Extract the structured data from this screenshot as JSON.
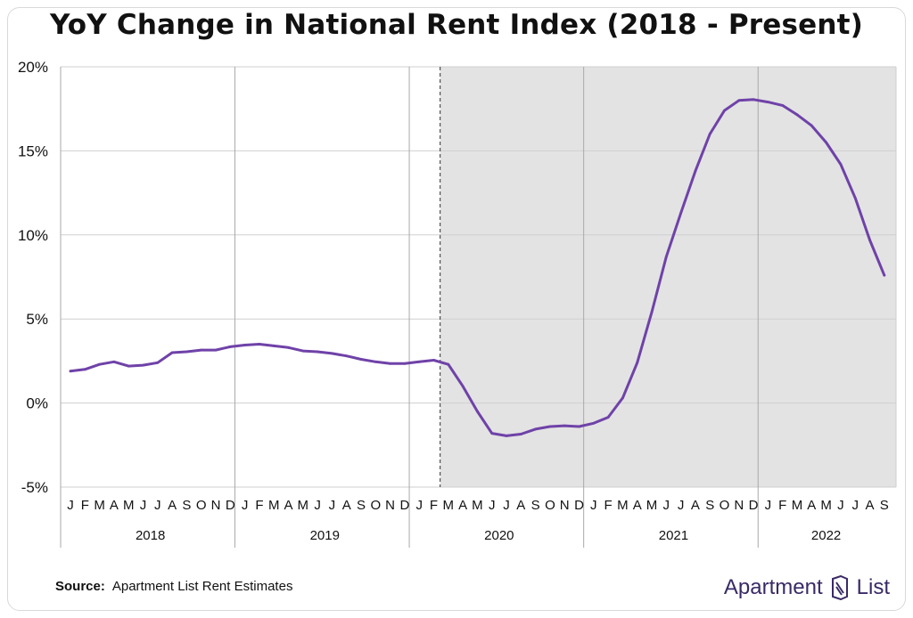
{
  "title": "YoY Change in National Rent Index (2018 - Present)",
  "source_label": "Source:",
  "source_text": "Apartment List Rent Estimates",
  "brand": {
    "word1": "Apartment",
    "word2": "List",
    "icon": "apartment-list-logo-icon",
    "color": "#3a2a66"
  },
  "colors": {
    "line": "#6f42a8",
    "shade": "#e3e3e3",
    "grid": "#cfcfcf",
    "year_divider": "#a9a9a9"
  },
  "chart_data": {
    "type": "line",
    "title": "YoY Change in National Rent Index (2018 - Present)",
    "xlabel": "",
    "ylabel": "",
    "ylim": [
      -5,
      20
    ],
    "yticks": [
      -5,
      0,
      5,
      10,
      15,
      20
    ],
    "ytick_labels": [
      "-5%",
      "0%",
      "5%",
      "10%",
      "15%",
      "20%"
    ],
    "grid": true,
    "shaded_region": {
      "from": "2020-03",
      "to": "2022-09"
    },
    "month_labels": [
      "J",
      "F",
      "M",
      "A",
      "M",
      "J",
      "J",
      "A",
      "S",
      "O",
      "N",
      "D",
      "J",
      "F",
      "M",
      "A",
      "M",
      "J",
      "J",
      "A",
      "S",
      "O",
      "N",
      "D",
      "J",
      "F",
      "M",
      "A",
      "M",
      "J",
      "J",
      "A",
      "S",
      "O",
      "N",
      "D",
      "J",
      "F",
      "M",
      "A",
      "M",
      "J",
      "J",
      "A",
      "S",
      "O",
      "N",
      "D",
      "J",
      "F",
      "M",
      "A",
      "M",
      "J",
      "J",
      "A",
      "S"
    ],
    "years": [
      {
        "label": "2018",
        "months": 12
      },
      {
        "label": "2019",
        "months": 12
      },
      {
        "label": "2020",
        "months": 12
      },
      {
        "label": "2021",
        "months": 12
      },
      {
        "label": "2022",
        "months": 9
      }
    ],
    "series": [
      {
        "x": [
          "2018-01",
          "2018-02",
          "2018-03",
          "2018-04",
          "2018-05",
          "2018-06",
          "2018-07",
          "2018-08",
          "2018-09",
          "2018-10",
          "2018-11",
          "2018-12",
          "2019-01",
          "2019-02",
          "2019-03",
          "2019-04",
          "2019-05",
          "2019-06",
          "2019-07",
          "2019-08",
          "2019-09",
          "2019-10",
          "2019-11",
          "2019-12",
          "2020-01",
          "2020-02",
          "2020-03",
          "2020-04",
          "2020-05",
          "2020-06",
          "2020-07",
          "2020-08",
          "2020-09",
          "2020-10",
          "2020-11",
          "2020-12",
          "2021-01",
          "2021-02",
          "2021-03",
          "2021-04",
          "2021-05",
          "2021-06",
          "2021-07",
          "2021-08",
          "2021-09",
          "2021-10",
          "2021-11",
          "2021-12",
          "2022-01",
          "2022-02",
          "2022-03",
          "2022-04",
          "2022-05",
          "2022-06",
          "2022-07",
          "2022-08",
          "2022-09"
        ],
        "values": [
          1.9,
          2.0,
          2.3,
          2.45,
          2.2,
          2.25,
          2.4,
          3.0,
          3.05,
          3.15,
          3.15,
          3.35,
          3.45,
          3.5,
          3.4,
          3.3,
          3.1,
          3.05,
          2.95,
          2.8,
          2.6,
          2.45,
          2.35,
          2.35,
          2.45,
          2.55,
          2.3,
          1.0,
          -0.5,
          -1.8,
          -1.95,
          -1.85,
          -1.55,
          -1.4,
          -1.35,
          -1.4,
          -1.2,
          -0.85,
          0.3,
          2.4,
          5.4,
          8.7,
          11.3,
          13.8,
          16.0,
          17.4,
          18.0,
          18.05,
          17.9,
          17.7,
          17.15,
          16.5,
          15.5,
          14.2,
          12.2,
          9.7,
          7.6
        ]
      }
    ]
  }
}
